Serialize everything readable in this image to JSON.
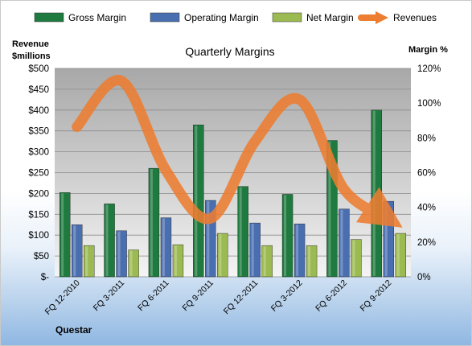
{
  "chart_data": {
    "type": "bar",
    "title": "Quarterly Margins",
    "ylabel_left": "Revenue $millions",
    "ylabel_left_lines": [
      "Revenue",
      "$millions"
    ],
    "ylabel_right": "Margin %",
    "footer": "Questar",
    "categories": [
      "FQ 12-2010",
      "FQ 3-2011",
      "FQ 6-2011",
      "FQ 9-2011",
      "FQ 12-2011",
      "FQ 3-2012",
      "FQ 6-2012",
      "FQ 9-2012"
    ],
    "left_axis": {
      "min": 0,
      "max": 500,
      "step": 50,
      "tick_labels": [
        "$-",
        "$50",
        "$100",
        "$150",
        "$200",
        "$250",
        "$300",
        "$350",
        "$400",
        "$450",
        "$500"
      ]
    },
    "right_axis": {
      "min": 0,
      "max": 120,
      "step": 20,
      "tick_labels": [
        "0%",
        "20%",
        "40%",
        "60%",
        "80%",
        "100%",
        "120%"
      ]
    },
    "series": [
      {
        "name": "Gross Margin",
        "type": "bar",
        "axis": "right",
        "unit": "%",
        "color": "#1e7a3e",
        "values": [
          48.5,
          42,
          62.5,
          87.5,
          52,
          47.5,
          78.5,
          96
        ]
      },
      {
        "name": "Operating Margin",
        "type": "bar",
        "axis": "right",
        "unit": "%",
        "color": "#4a6fb0",
        "values": [
          30,
          26.5,
          34,
          44,
          31,
          30.5,
          39,
          43.5
        ]
      },
      {
        "name": "Net Margin",
        "type": "bar",
        "axis": "right",
        "unit": "%",
        "color": "#9cba52",
        "values": [
          18,
          15.5,
          18.5,
          25,
          18,
          18,
          21.5,
          25
        ]
      },
      {
        "name": "Revenues",
        "type": "line",
        "axis": "left",
        "unit": "$M",
        "color": "#ed7d31",
        "values": [
          360,
          470,
          255,
          140,
          325,
          425,
          210,
          140
        ]
      }
    ],
    "legend": {
      "position": "top"
    },
    "grid": true
  }
}
